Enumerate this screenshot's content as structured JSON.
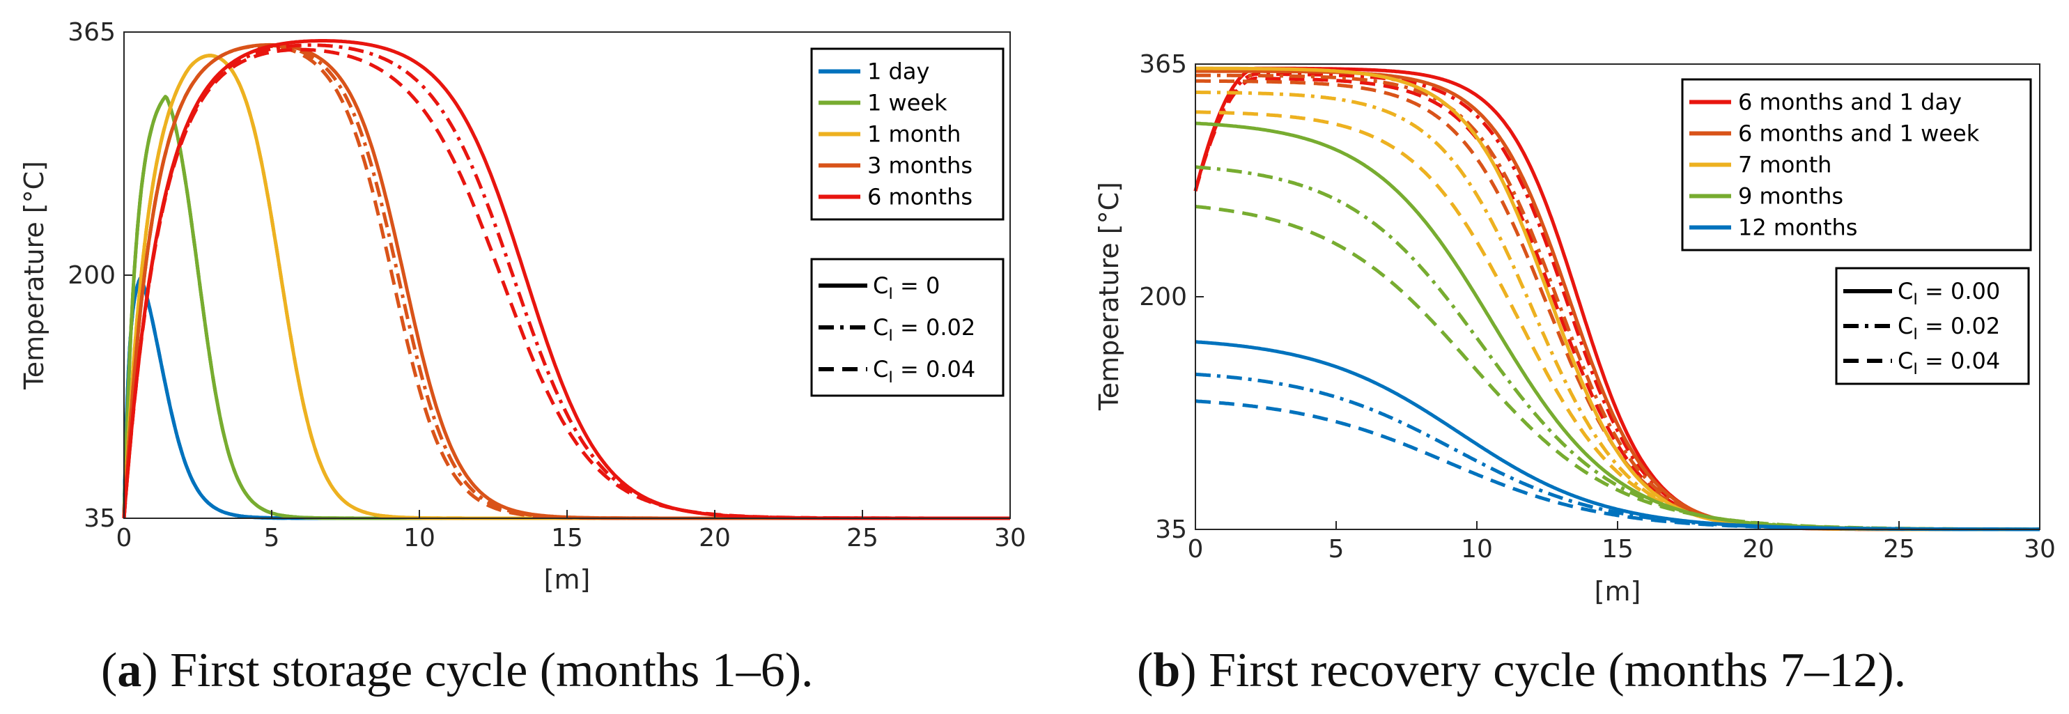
{
  "chart_data": [
    {
      "type": "line",
      "panel_label": "a",
      "caption": "First storage cycle (months 1–6).",
      "xlabel": "[m]",
      "ylabel": "Temperature [°C]",
      "xlim": [
        0,
        30
      ],
      "ylim": [
        35,
        365
      ],
      "xticks": [
        "0",
        "5",
        "10",
        "15",
        "20",
        "25",
        "30"
      ],
      "yticks": [
        "35",
        "200",
        "365"
      ],
      "grid": false,
      "legend_time_position": "top-right",
      "legend_style_position": "right",
      "time_legend": [
        {
          "label": "1 day",
          "color": "#0072BD"
        },
        {
          "label": "1 week",
          "color": "#77AC30"
        },
        {
          "label": "1 month",
          "color": "#EDB120"
        },
        {
          "label": "3 months",
          "color": "#D95319"
        },
        {
          "label": "6 months",
          "color": "#E8150F"
        }
      ],
      "style_legend": [
        {
          "label": "C",
          "sub": "I",
          "value": "= 0",
          "dash": "solid"
        },
        {
          "label": "C",
          "sub": "I",
          "value": "= 0.02",
          "dash": "dashdot"
        },
        {
          "label": "C",
          "sub": "I",
          "value": "= 0.04",
          "dash": "dashed"
        }
      ],
      "series": [
        {
          "time": "1 day",
          "CI": "0",
          "peak_x": 0.6,
          "peak_y": 201,
          "front_x": 1.2,
          "width": 0.55
        },
        {
          "time": "1 day",
          "CI": "0.02",
          "peak_x": 0.6,
          "peak_y": 201,
          "front_x": 1.2,
          "width": 0.55
        },
        {
          "time": "1 day",
          "CI": "0.04",
          "peak_x": 0.6,
          "peak_y": 201,
          "front_x": 1.2,
          "width": 0.55
        },
        {
          "time": "1 week",
          "CI": "0",
          "peak_x": 1.5,
          "peak_y": 326,
          "front_x": 2.5,
          "width": 0.55
        },
        {
          "time": "1 week",
          "CI": "0.02",
          "peak_x": 1.5,
          "peak_y": 326,
          "front_x": 2.5,
          "width": 0.55
        },
        {
          "time": "1 week",
          "CI": "0.04",
          "peak_x": 1.5,
          "peak_y": 326,
          "front_x": 2.5,
          "width": 0.55
        },
        {
          "time": "1 month",
          "CI": "0",
          "peak_x": 3.0,
          "peak_y": 358,
          "front_x": 5.3,
          "width": 0.65
        },
        {
          "time": "1 month",
          "CI": "0.02",
          "peak_x": 3.0,
          "peak_y": 358,
          "front_x": 5.3,
          "width": 0.65
        },
        {
          "time": "1 month",
          "CI": "0.04",
          "peak_x": 3.0,
          "peak_y": 358,
          "front_x": 5.3,
          "width": 0.65
        },
        {
          "time": "3 months",
          "CI": "0",
          "peak_x": 3.5,
          "peak_y": 360,
          "front_x": 9.5,
          "width": 0.9
        },
        {
          "time": "3 months",
          "CI": "0.02",
          "peak_x": 3.5,
          "peak_y": 360,
          "front_x": 9.3,
          "width": 0.9
        },
        {
          "time": "3 months",
          "CI": "0.04",
          "peak_x": 3.5,
          "peak_y": 360,
          "front_x": 9.1,
          "width": 0.9
        },
        {
          "time": "6 months",
          "CI": "0",
          "peak_x": 4.5,
          "peak_y": 362,
          "front_x": 13.6,
          "width": 1.3
        },
        {
          "time": "6 months",
          "CI": "0.02",
          "peak_x": 4.5,
          "peak_y": 360,
          "front_x": 13.2,
          "width": 1.4
        },
        {
          "time": "6 months",
          "CI": "0.04",
          "peak_x": 4.5,
          "peak_y": 358,
          "front_x": 12.8,
          "width": 1.5
        }
      ]
    },
    {
      "type": "line",
      "panel_label": "b",
      "caption": "First recovery cycle (months 7–12).",
      "xlabel": "[m]",
      "ylabel": "Temperature [°C]",
      "xlim": [
        0,
        30
      ],
      "ylim": [
        35,
        365
      ],
      "xticks": [
        "0",
        "5",
        "10",
        "15",
        "20",
        "25",
        "30"
      ],
      "yticks": [
        "35",
        "200",
        "365"
      ],
      "grid": false,
      "legend_time_position": "top-right",
      "legend_style_position": "right",
      "time_legend": [
        {
          "label": "6 months and 1 day",
          "color": "#E8150F"
        },
        {
          "label": "6 months and 1 week",
          "color": "#D95319"
        },
        {
          "label": "7 month",
          "color": "#EDB120"
        },
        {
          "label": "9 months",
          "color": "#77AC30"
        },
        {
          "label": "12 months",
          "color": "#0072BD"
        }
      ],
      "style_legend": [
        {
          "label": "C",
          "sub": "I",
          "value": "= 0.00",
          "dash": "solid"
        },
        {
          "label": "C",
          "sub": "I",
          "value": "= 0.02",
          "dash": "dashdot"
        },
        {
          "label": "C",
          "sub": "I",
          "value": "= 0.04",
          "dash": "dashed"
        }
      ],
      "series": [
        {
          "time": "6 months and 1 day",
          "CI": "0.00",
          "start_y": 275,
          "plateau": 362,
          "front_x": 13.6,
          "width": 1.3
        },
        {
          "time": "6 months and 1 day",
          "CI": "0.02",
          "start_y": 275,
          "plateau": 358,
          "front_x": 13.2,
          "width": 1.4
        },
        {
          "time": "6 months and 1 day",
          "CI": "0.04",
          "start_y": 275,
          "plateau": 355,
          "front_x": 12.8,
          "width": 1.5
        },
        {
          "time": "6 months and 1 week",
          "CI": "0.00",
          "plateau": 360,
          "front_x": 13.3,
          "width": 1.4
        },
        {
          "time": "6 months and 1 week",
          "CI": "0.02",
          "plateau": 357,
          "front_x": 12.9,
          "width": 1.5
        },
        {
          "time": "6 months and 1 week",
          "CI": "0.04",
          "plateau": 353,
          "front_x": 12.5,
          "width": 1.6
        },
        {
          "time": "7 month",
          "CI": "0.00",
          "plateau": 362,
          "front_x": 12.6,
          "width": 1.5
        },
        {
          "time": "7 month",
          "CI": "0.02",
          "plateau": 345,
          "front_x": 12.0,
          "width": 1.7
        },
        {
          "time": "7 month",
          "CI": "0.04",
          "plateau": 331,
          "front_x": 11.5,
          "width": 1.9
        },
        {
          "time": "9 months",
          "CI": "0.00",
          "plateau": 323,
          "front_x": 10.6,
          "width": 2.2
        },
        {
          "time": "9 months",
          "CI": "0.02",
          "plateau": 292,
          "front_x": 10.2,
          "width": 2.4
        },
        {
          "time": "9 months",
          "CI": "0.04",
          "plateau": 264,
          "front_x": 9.8,
          "width": 2.6
        },
        {
          "time": "12 months",
          "CI": "0.00",
          "plateau": 168,
          "front_x": 9.4,
          "width": 2.6
        },
        {
          "time": "12 months",
          "CI": "0.02",
          "plateau": 145,
          "front_x": 9.2,
          "width": 2.7
        },
        {
          "time": "12 months",
          "CI": "0.04",
          "plateau": 126,
          "front_x": 9.0,
          "width": 2.8
        }
      ]
    }
  ]
}
